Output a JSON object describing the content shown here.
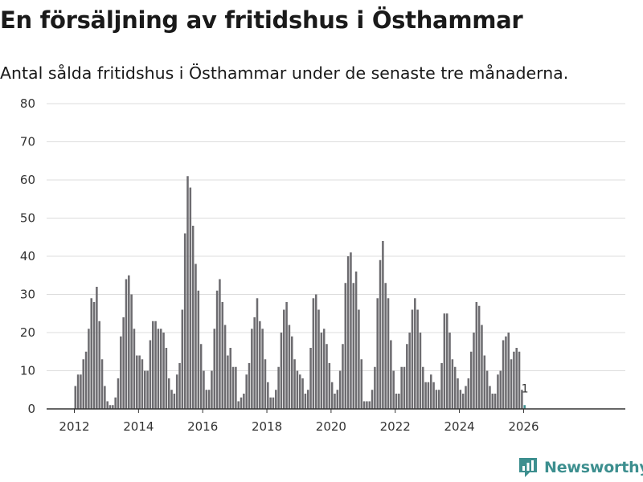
{
  "title": "En försäljning av fritidshus i Östhammar",
  "subtitle": "Antal sålda fritidshus i Östhammar under de senaste tre månaderna.",
  "brand": {
    "name": "Newsworthy",
    "logo": "newsworthy-logo-icon",
    "color": "#3d8f8f"
  },
  "colors": {
    "bar": "#6d6c70",
    "highlight": "#3d8f8f",
    "grid": "#dddddd",
    "axis": "#333333"
  },
  "chart_data": {
    "type": "bar",
    "title": "En försäljning av fritidshus i Östhammar",
    "ylabel": "",
    "xlabel": "",
    "ylim": [
      0,
      80
    ],
    "yticks": [
      0,
      10,
      20,
      30,
      40,
      50,
      60,
      70,
      80
    ],
    "xticks": [
      "2012",
      "2014",
      "2016",
      "2018",
      "2020",
      "2022",
      "2024",
      "2026"
    ],
    "start": "2012-01",
    "frequency": "monthly",
    "series": [
      {
        "name": "Antal sålda fritidshus",
        "values": [
          6,
          9,
          9,
          13,
          15,
          21,
          29,
          28,
          32,
          23,
          13,
          6,
          2,
          1,
          1,
          3,
          8,
          19,
          24,
          34,
          35,
          30,
          21,
          14,
          14,
          13,
          10,
          10,
          18,
          23,
          23,
          21,
          21,
          20,
          16,
          8,
          5,
          4,
          9,
          12,
          26,
          46,
          61,
          58,
          48,
          38,
          31,
          17,
          10,
          5,
          5,
          10,
          21,
          31,
          34,
          28,
          22,
          14,
          16,
          11,
          11,
          2,
          3,
          4,
          9,
          12,
          21,
          24,
          29,
          23,
          21,
          13,
          7,
          3,
          3,
          5,
          11,
          20,
          26,
          28,
          22,
          19,
          13,
          10,
          9,
          8,
          4,
          5,
          16,
          29,
          30,
          26,
          20,
          21,
          17,
          12,
          7,
          4,
          5,
          10,
          17,
          33,
          40,
          41,
          33,
          36,
          26,
          13,
          2,
          2,
          2,
          5,
          11,
          29,
          39,
          44,
          33,
          29,
          18,
          10,
          4,
          4,
          11,
          11,
          17,
          20,
          26,
          29,
          26,
          20,
          11,
          7,
          7,
          9,
          7,
          5,
          5,
          12,
          25,
          25,
          20,
          13,
          11,
          8,
          5,
          4,
          6,
          8,
          15,
          20,
          28,
          27,
          22,
          14,
          10,
          6,
          4,
          4,
          9,
          10,
          18,
          19,
          20,
          13,
          15,
          16,
          15,
          5,
          1
        ]
      }
    ],
    "annotations": [
      {
        "index": 168,
        "text": "1"
      }
    ]
  }
}
